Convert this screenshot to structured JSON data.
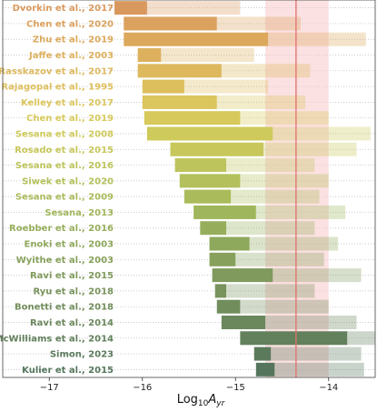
{
  "chart_data": {
    "type": "bar",
    "orientation": "horizontal",
    "xlabel_base": "Log",
    "xlabel_sub": "10",
    "xlabel_var": "A",
    "xlabel_var_sub": "yr",
    "xlim": [
      -17.5,
      -13.5
    ],
    "xticks": [
      -17,
      -16,
      -15,
      -14
    ],
    "xtick_labels": [
      "−17",
      "−16",
      "−15",
      "−14"
    ],
    "reference_line": -14.35,
    "reference_band": [
      -14.68,
      -14.0
    ],
    "grid": "horizontal dotted",
    "rows": [
      {
        "label": "Dvorkin et al., 2017",
        "lo": -16.3,
        "mid": -15.95,
        "hi": -14.95,
        "color": "#d9995e"
      },
      {
        "label": "Chen et al., 2020",
        "lo": -16.2,
        "mid": -15.2,
        "hi": -14.3,
        "color": "#dba15e"
      },
      {
        "label": "Zhu et al., 2019",
        "lo": -16.2,
        "mid": -14.65,
        "hi": -13.6,
        "color": "#dca95c"
      },
      {
        "label": "Jaffe et al., 2003",
        "lo": -16.05,
        "mid": -15.8,
        "hi": -14.8,
        "color": "#ddb05d"
      },
      {
        "label": "Rasskazov et al., 2017",
        "lo": -16.05,
        "mid": -15.15,
        "hi": -14.2,
        "color": "#ddb85d"
      },
      {
        "label": "Rajagopal et al., 1995",
        "lo": -16.0,
        "mid": -15.55,
        "hi": -14.65,
        "color": "#ddbf5d"
      },
      {
        "label": "Kelley et al., 2017",
        "lo": -16.0,
        "mid": -15.2,
        "hi": -14.25,
        "color": "#dbc55d"
      },
      {
        "label": "Chen et al., 2019",
        "lo": -15.98,
        "mid": -14.95,
        "hi": -14.0,
        "color": "#d7c95b"
      },
      {
        "label": "Sesana et al., 2008",
        "lo": -15.95,
        "mid": -14.6,
        "hi": -13.55,
        "color": "#ceca5b"
      },
      {
        "label": "Rosado et al., 2015",
        "lo": -15.7,
        "mid": -14.7,
        "hi": -13.7,
        "color": "#c7c75b"
      },
      {
        "label": "Sesana et al., 2016",
        "lo": -15.65,
        "mid": -15.1,
        "hi": -14.15,
        "color": "#bdc45b"
      },
      {
        "label": "Siwek et al., 2020",
        "lo": -15.6,
        "mid": -14.95,
        "hi": -14.0,
        "color": "#b3c05b"
      },
      {
        "label": "Sesana et al., 2009",
        "lo": -15.55,
        "mid": -15.05,
        "hi": -14.1,
        "color": "#a9bb5b"
      },
      {
        "label": "Sesana, 2013",
        "lo": -15.45,
        "mid": -14.78,
        "hi": -13.82,
        "color": "#a0b65c"
      },
      {
        "label": "Roebber et al., 2016",
        "lo": -15.38,
        "mid": -15.1,
        "hi": -14.15,
        "color": "#96ae5c"
      },
      {
        "label": "Enoki et al., 2003",
        "lo": -15.28,
        "mid": -14.85,
        "hi": -13.9,
        "color": "#8ea85c"
      },
      {
        "label": "Wyithe et al., 2003",
        "lo": -15.28,
        "mid": -15.0,
        "hi": -14.05,
        "color": "#87a15c"
      },
      {
        "label": "Ravi et al., 2015",
        "lo": -15.25,
        "mid": -14.6,
        "hi": -13.65,
        "color": "#7f9a5c"
      },
      {
        "label": "Ryu et al., 2018",
        "lo": -15.22,
        "mid": -15.1,
        "hi": -14.15,
        "color": "#78935c"
      },
      {
        "label": "Bonetti et al., 2018",
        "lo": -15.2,
        "mid": -14.95,
        "hi": -14.0,
        "color": "#718d5c"
      },
      {
        "label": "Ravi et al., 2014",
        "lo": -15.15,
        "mid": -14.68,
        "hi": -13.7,
        "color": "#6b875c"
      },
      {
        "label": "McWilliams et al., 2014",
        "lo": -14.95,
        "mid": -13.8,
        "hi": -13.5,
        "color": "#62805c"
      },
      {
        "label": "Simon, 2023",
        "lo": -14.8,
        "mid": -14.62,
        "hi": -13.65,
        "color": "#5b7a5c"
      },
      {
        "label": "Kulier et al., 2015",
        "lo": -14.78,
        "mid": -14.58,
        "hi": -13.62,
        "color": "#55765c"
      }
    ]
  }
}
